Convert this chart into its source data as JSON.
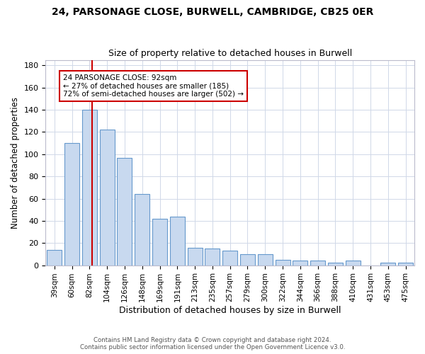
{
  "title": "24, PARSONAGE CLOSE, BURWELL, CAMBRIDGE, CB25 0ER",
  "subtitle": "Size of property relative to detached houses in Burwell",
  "xlabel": "Distribution of detached houses by size in Burwell",
  "ylabel": "Number of detached properties",
  "footer_line1": "Contains HM Land Registry data © Crown copyright and database right 2024.",
  "footer_line2": "Contains public sector information licensed under the Open Government Licence v3.0.",
  "categories": [
    "39sqm",
    "60sqm",
    "82sqm",
    "104sqm",
    "126sqm",
    "148sqm",
    "169sqm",
    "191sqm",
    "213sqm",
    "235sqm",
    "257sqm",
    "279sqm",
    "300sqm",
    "322sqm",
    "344sqm",
    "366sqm",
    "388sqm",
    "410sqm",
    "431sqm",
    "453sqm",
    "475sqm"
  ],
  "values": [
    14,
    110,
    140,
    122,
    97,
    64,
    42,
    44,
    16,
    15,
    13,
    10,
    10,
    5,
    4,
    4,
    2,
    4,
    0,
    2,
    2
  ],
  "bar_color": "#c8d9ef",
  "bar_edge_color": "#6699cc",
  "annotation_text_line1": "24 PARSONAGE CLOSE: 92sqm",
  "annotation_text_line2": "← 27% of detached houses are smaller (185)",
  "annotation_text_line3": "72% of semi-detached houses are larger (502) →",
  "annotation_box_color": "#ffffff",
  "annotation_border_color": "#cc0000",
  "red_line_color": "#cc0000",
  "ylim": [
    0,
    185
  ],
  "yticks": [
    0,
    20,
    40,
    60,
    80,
    100,
    120,
    140,
    160,
    180
  ],
  "background_color": "#ffffff",
  "grid_color": "#d0d8e8",
  "red_line_xindex": 2.15
}
